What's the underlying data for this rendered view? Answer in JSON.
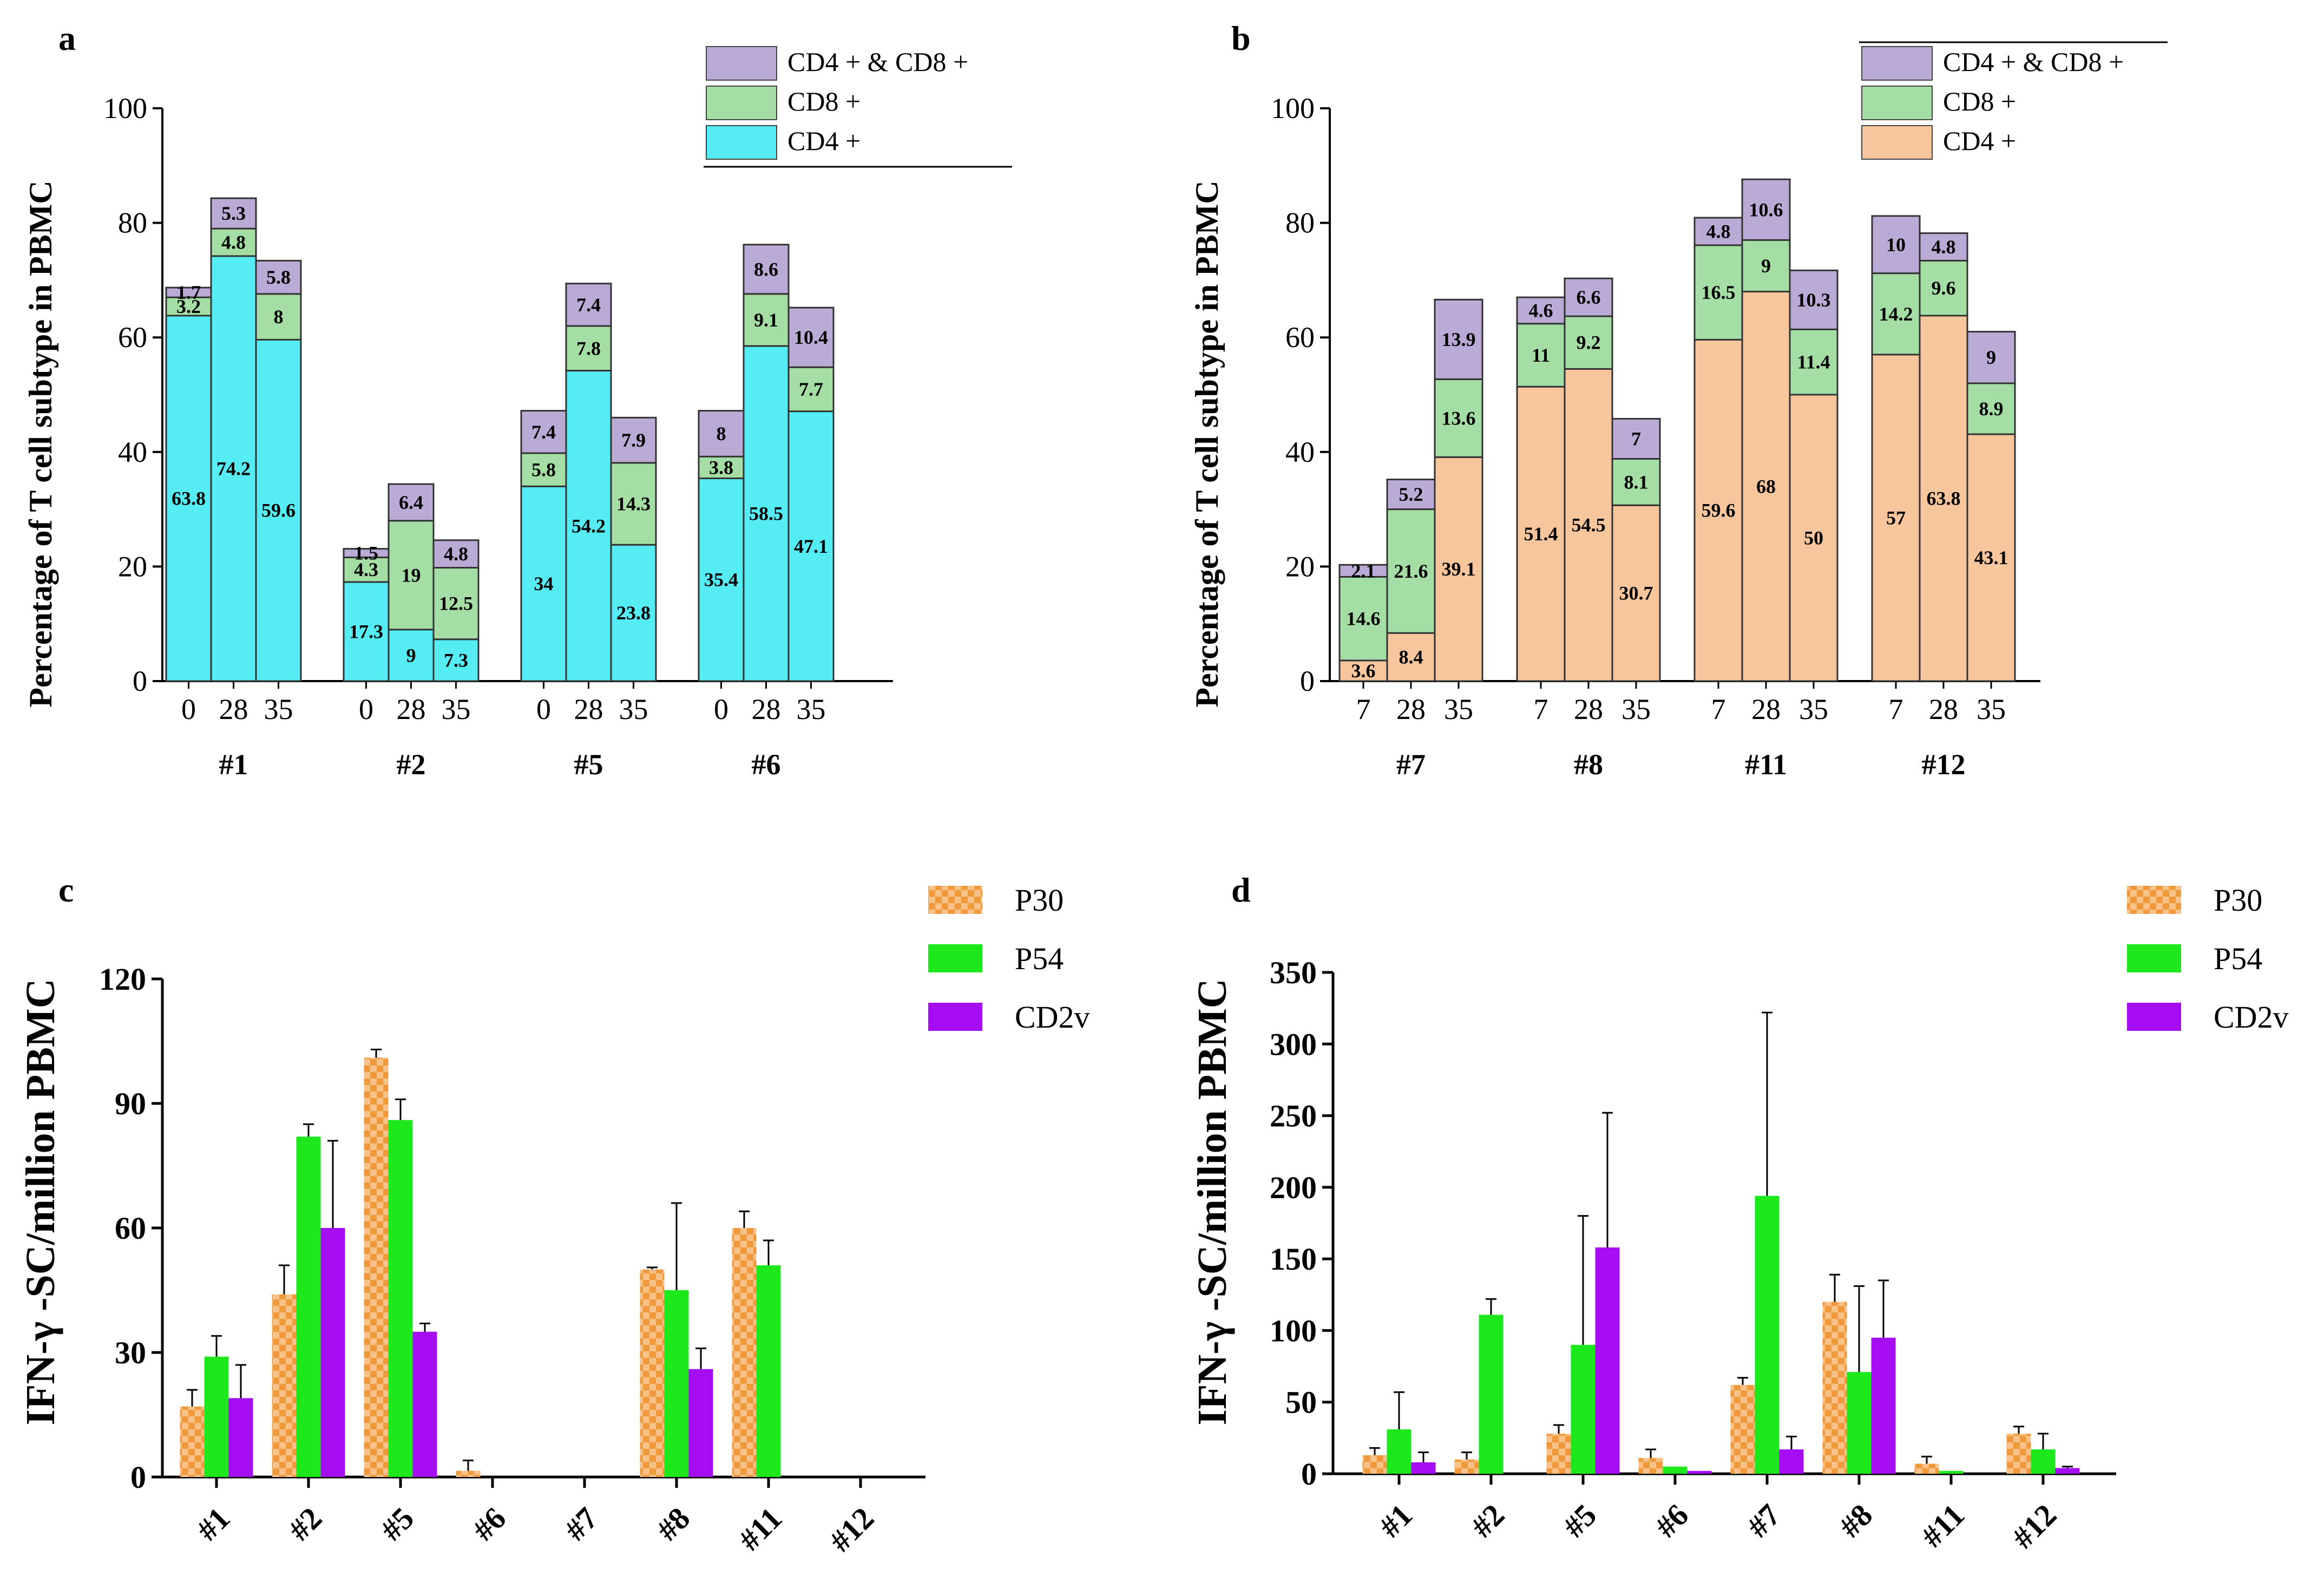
{
  "chart_data": [
    {
      "panel": "a",
      "type": "stacked-bar",
      "ylabel": "Percentage of T cell subtype in PBMC",
      "ylim": [
        0,
        100
      ],
      "yticks": [
        0,
        20,
        40,
        60,
        80,
        100
      ],
      "legend": [
        "CD4 + & CD8 +",
        "CD8 +",
        "CD4 +"
      ],
      "colors": {
        "CD4": "#55ecf4",
        "CD8": "#a4dea4",
        "DP": "#b9abd6"
      },
      "groups": [
        {
          "label": "#1",
          "bars": [
            {
              "day": "0",
              "CD4": 63.8,
              "CD8": 3.2,
              "DP": 1.7
            },
            {
              "day": "28",
              "CD4": 74.2,
              "CD8": 4.8,
              "DP": 5.3
            },
            {
              "day": "35",
              "CD4": 59.6,
              "CD8": 8,
              "DP": 5.8
            }
          ]
        },
        {
          "label": "#2",
          "bars": [
            {
              "day": "0",
              "CD4": 17.3,
              "CD8": 4.3,
              "DP": 1.5
            },
            {
              "day": "28",
              "CD4": 9,
              "CD8": 19,
              "DP": 6.4
            },
            {
              "day": "35",
              "CD4": 7.3,
              "CD8": 12.5,
              "DP": 4.8
            }
          ]
        },
        {
          "label": "#5",
          "bars": [
            {
              "day": "0",
              "CD4": 34,
              "CD8": 5.8,
              "DP": 7.4
            },
            {
              "day": "28",
              "CD4": 54.2,
              "CD8": 7.8,
              "DP": 7.4
            },
            {
              "day": "35",
              "CD4": 23.8,
              "CD8": 14.3,
              "DP": 7.9
            }
          ]
        },
        {
          "label": "#6",
          "bars": [
            {
              "day": "0",
              "CD4": 35.4,
              "CD8": 3.8,
              "DP": 8
            },
            {
              "day": "28",
              "CD4": 58.5,
              "CD8": 9.1,
              "DP": 8.6
            },
            {
              "day": "35",
              "CD4": 47.1,
              "CD8": 7.7,
              "DP": 10.4
            }
          ]
        }
      ]
    },
    {
      "panel": "b",
      "type": "stacked-bar",
      "ylabel": "Percentage of T cell subtype in PBMC",
      "ylim": [
        0,
        100
      ],
      "yticks": [
        0,
        20,
        40,
        60,
        80,
        100
      ],
      "legend": [
        "CD4 + & CD8 +",
        "CD8 +",
        "CD4 +"
      ],
      "colors": {
        "CD4": "#f8c69c",
        "CD8": "#a4dea4",
        "DP": "#b9abd6"
      },
      "groups": [
        {
          "label": "#7",
          "bars": [
            {
              "day": "7",
              "CD4": 3.6,
              "CD8": 14.6,
              "DP": 2.1
            },
            {
              "day": "28",
              "CD4": 8.4,
              "CD8": 21.6,
              "DP": 5.2
            },
            {
              "day": "35",
              "CD4": 39.1,
              "CD8": 13.6,
              "DP": 13.9
            }
          ]
        },
        {
          "label": "#8",
          "bars": [
            {
              "day": "7",
              "CD4": 51.4,
              "CD8": 11,
              "DP": 4.6
            },
            {
              "day": "28",
              "CD4": 54.5,
              "CD8": 9.2,
              "DP": 6.6
            },
            {
              "day": "35",
              "CD4": 30.7,
              "CD8": 8.1,
              "DP": 7
            }
          ]
        },
        {
          "label": "#11",
          "bars": [
            {
              "day": "7",
              "CD4": 59.6,
              "CD8": 16.5,
              "DP": 4.8
            },
            {
              "day": "28",
              "CD4": 68,
              "CD8": 9,
              "DP": 10.6
            },
            {
              "day": "35",
              "CD4": 50,
              "CD8": 11.4,
              "DP": 10.3
            }
          ]
        },
        {
          "label": "#12",
          "bars": [
            {
              "day": "7",
              "CD4": 57,
              "CD8": 14.2,
              "DP": 10
            },
            {
              "day": "28",
              "CD4": 63.8,
              "CD8": 9.6,
              "DP": 4.8
            },
            {
              "day": "35",
              "CD4": 43.1,
              "CD8": 8.9,
              "DP": 9
            }
          ]
        }
      ]
    },
    {
      "panel": "c",
      "type": "bar",
      "ylabel": "IFN-γ -SC/million PBMC",
      "ylim": [
        0,
        120
      ],
      "yticks": [
        0,
        30,
        60,
        90,
        120
      ],
      "categories": [
        "#1",
        "#2",
        "#5",
        "#6",
        "#7",
        "#8",
        "#11",
        "#12"
      ],
      "series": [
        {
          "name": "P30",
          "color": "#f4a24a",
          "values": [
            17,
            44,
            101,
            1.5,
            0,
            50,
            60,
            0
          ],
          "errors": [
            4,
            7,
            2,
            2.5,
            0,
            0.5,
            4,
            0
          ]
        },
        {
          "name": "P54",
          "color": "#1ce81c",
          "values": [
            29,
            82,
            86,
            0,
            0,
            45,
            51,
            0
          ],
          "errors": [
            5,
            3,
            5,
            0,
            0,
            21,
            6,
            0
          ]
        },
        {
          "name": "CD2v",
          "color": "#a50ef2",
          "values": [
            19,
            60,
            35,
            0,
            0,
            26,
            0,
            0
          ],
          "errors": [
            8,
            21,
            2,
            0,
            0,
            5,
            0,
            0
          ]
        }
      ]
    },
    {
      "panel": "d",
      "type": "bar",
      "ylabel": "IFN-γ -SC/million PBMC",
      "ylim": [
        0,
        350
      ],
      "yticks": [
        0,
        50,
        100,
        150,
        200,
        250,
        300,
        350
      ],
      "categories": [
        "#1",
        "#2",
        "#5",
        "#6",
        "#7",
        "#8",
        "#11",
        "#12"
      ],
      "series": [
        {
          "name": "P30",
          "color": "#f4a24a",
          "values": [
            13,
            10,
            28,
            11,
            62,
            120,
            7,
            28
          ],
          "errors": [
            5,
            5,
            6,
            6,
            5,
            19,
            5,
            5
          ]
        },
        {
          "name": "P54",
          "color": "#1ce81c",
          "values": [
            31,
            111,
            90,
            5,
            194,
            71,
            2,
            17
          ],
          "errors": [
            26,
            11,
            90,
            0,
            128,
            60,
            0,
            11
          ]
        },
        {
          "name": "CD2v",
          "color": "#a50ef2",
          "values": [
            8,
            0,
            158,
            2,
            17,
            95,
            0,
            4
          ],
          "errors": [
            7,
            0,
            94,
            0,
            9,
            40,
            0,
            1
          ]
        }
      ]
    }
  ]
}
